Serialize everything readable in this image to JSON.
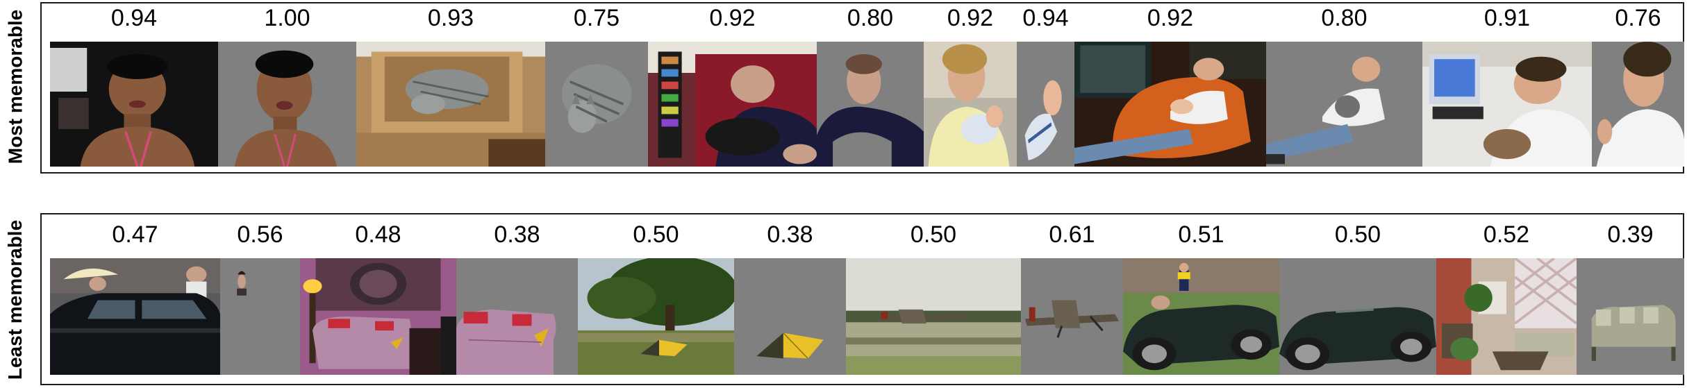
{
  "figure": {
    "rows": [
      {
        "label": "Most memorable",
        "scores": [
          "0.94",
          "1.00",
          "0.93",
          "0.75",
          "0.92",
          "0.80",
          "0.92",
          "0.94",
          "0.92",
          "0.80",
          "0.91",
          "0.76"
        ],
        "images": [
          {
            "kind": "full",
            "subject": "woman portrait"
          },
          {
            "kind": "masked",
            "subject": "woman portrait"
          },
          {
            "kind": "full",
            "subject": "cat in box"
          },
          {
            "kind": "masked",
            "subject": "cat"
          },
          {
            "kind": "full",
            "subject": "man with cat on couch"
          },
          {
            "kind": "masked",
            "subject": "man"
          },
          {
            "kind": "full",
            "subject": "woman holding baby"
          },
          {
            "kind": "masked",
            "subject": "baby"
          },
          {
            "kind": "full",
            "subject": "man in armchair with baby"
          },
          {
            "kind": "masked",
            "subject": "man"
          },
          {
            "kind": "full",
            "subject": "man at computer with cat"
          },
          {
            "kind": "masked",
            "subject": "man"
          }
        ]
      },
      {
        "label": "Least memorable",
        "scores": [
          "0.47",
          "0.56",
          "0.48",
          "0.38",
          "0.50",
          "0.38",
          "0.50",
          "0.61",
          "0.51",
          "0.50",
          "0.52",
          "0.39"
        ],
        "images": [
          {
            "kind": "full",
            "subject": "black car on street"
          },
          {
            "kind": "masked",
            "subject": "person"
          },
          {
            "kind": "full",
            "subject": "pink room with sofa"
          },
          {
            "kind": "masked",
            "subject": "sofa"
          },
          {
            "kind": "full",
            "subject": "tent under tree"
          },
          {
            "kind": "masked",
            "subject": "tent"
          },
          {
            "kind": "full",
            "subject": "airplane on runway"
          },
          {
            "kind": "masked",
            "subject": "airplane"
          },
          {
            "kind": "full",
            "subject": "vintage car on field"
          },
          {
            "kind": "masked",
            "subject": "car"
          },
          {
            "kind": "full",
            "subject": "patio with furniture"
          },
          {
            "kind": "masked",
            "subject": "sofa"
          }
        ]
      }
    ]
  }
}
